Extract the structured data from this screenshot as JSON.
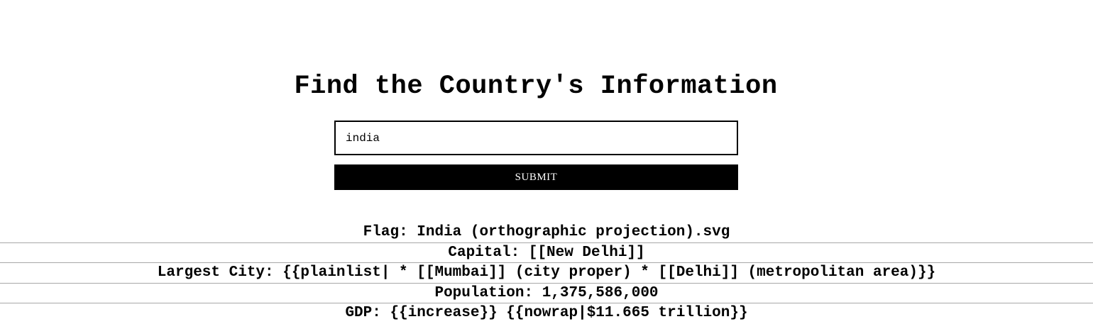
{
  "header": {
    "title": "Find the Country's Information"
  },
  "search": {
    "value": "india",
    "placeholder": ""
  },
  "form": {
    "submit_label": "SUBMIT"
  },
  "results": {
    "flag": "Flag: India (orthographic projection).svg",
    "capital": "Capital: [[New Delhi]]",
    "largest_city": "Largest City: {{plainlist| * [[Mumbai]] (city proper) * [[Delhi]] (metropolitan area)}}",
    "population": "Population: 1,375,586,000",
    "gdp": "GDP: {{increase}} {{nowrap|$11.665 trillion}}"
  }
}
